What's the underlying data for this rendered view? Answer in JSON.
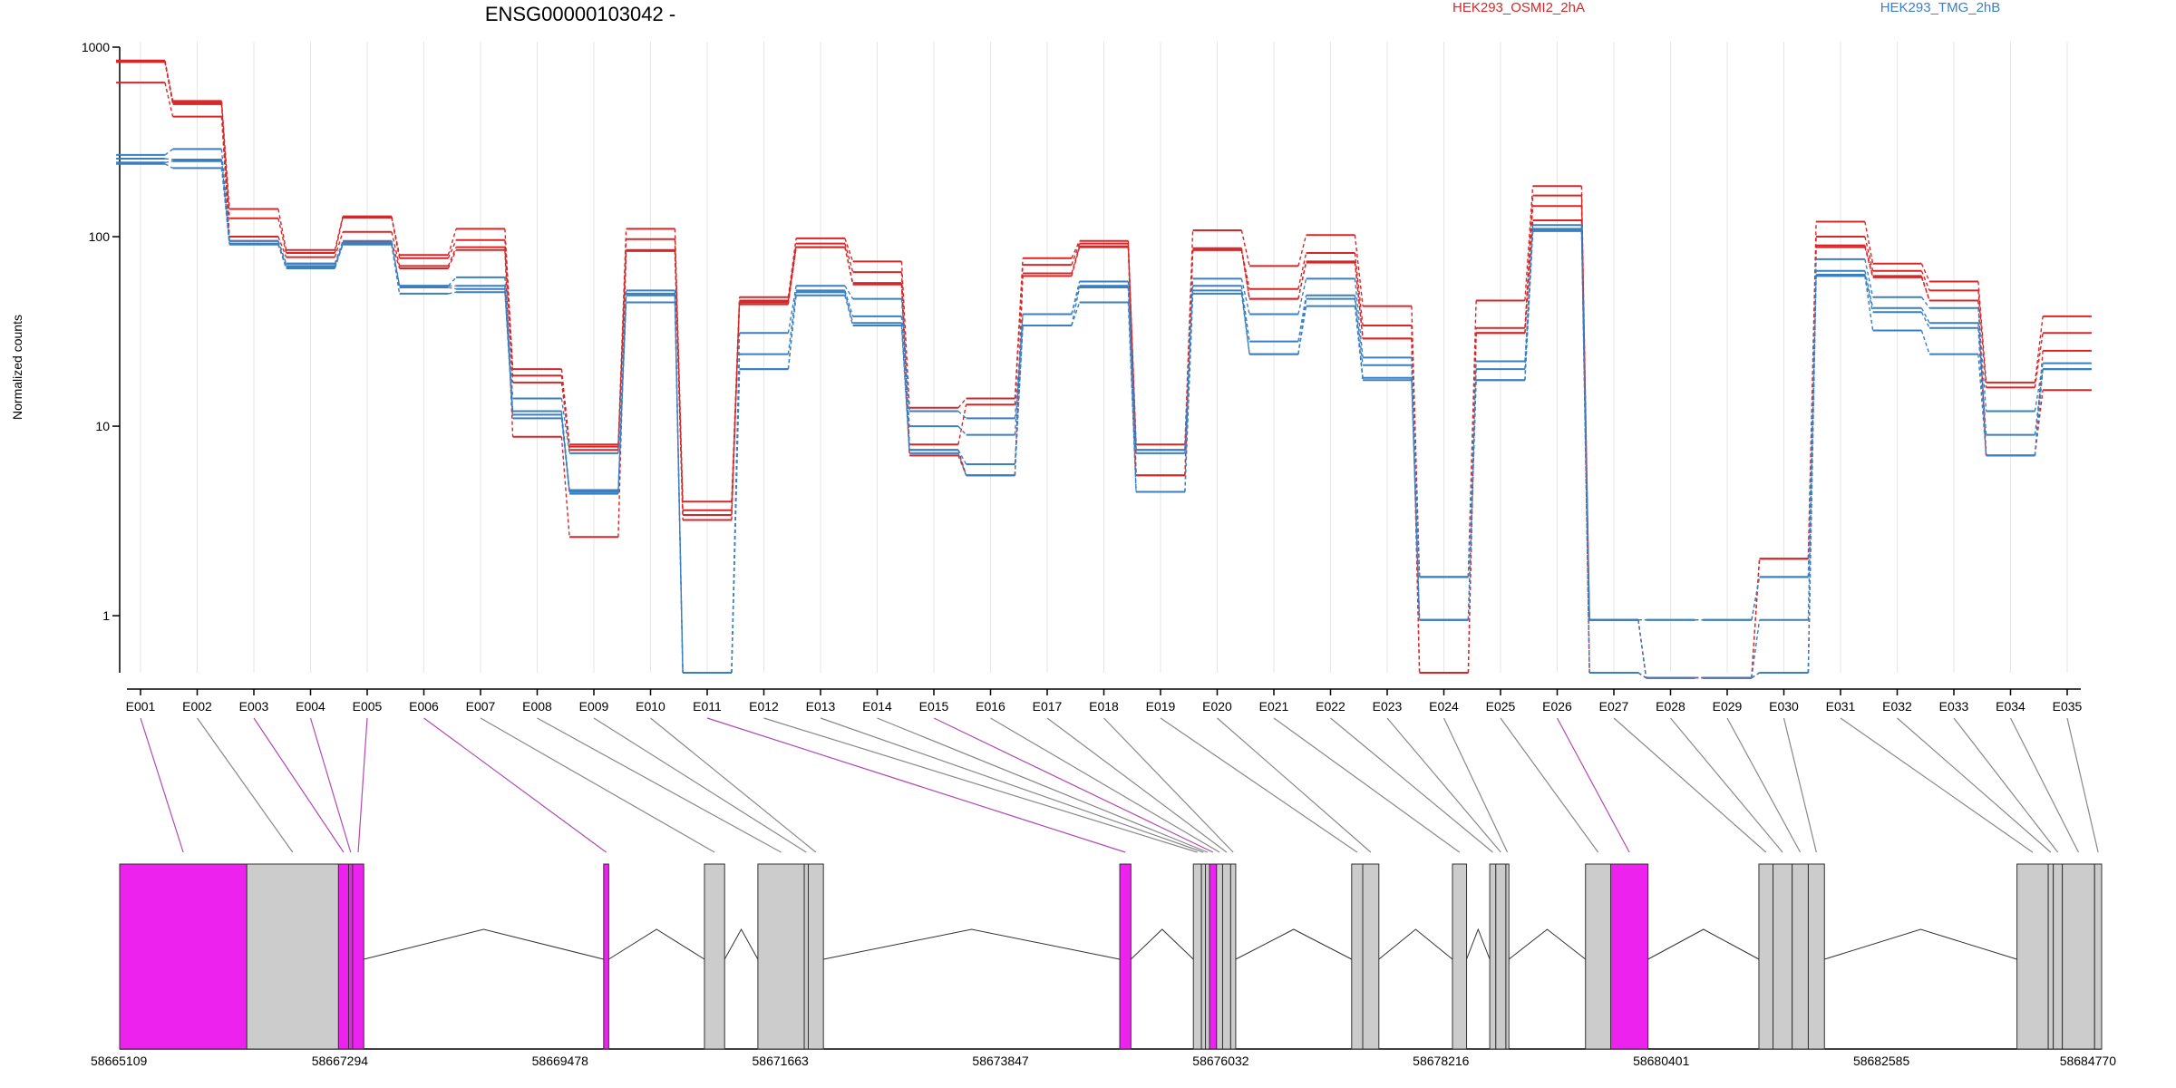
{
  "title": "ENSG00000103042 -",
  "ylabel": "Normalized counts",
  "legend": [
    {
      "name": "HEK293_OSMI2_2hA",
      "color": "#d62728"
    },
    {
      "name": "HEK293_TMG_2hB",
      "color": "#3a7fc0"
    }
  ],
  "colors": {
    "condA": "#d62728",
    "condB": "#3a7fc0",
    "spliced": "#ee22ee",
    "exon": "#cccccc",
    "grid": "#e6e6e6"
  },
  "chart_data": [
    {
      "type": "line",
      "scale": "log",
      "ylabel": "Normalized counts",
      "ylim": [
        0.5,
        1000
      ],
      "yticks": [
        1,
        10,
        100,
        1000
      ],
      "ytick_labels": [
        "1",
        "10",
        "100",
        "1000"
      ],
      "categories": [
        "E001",
        "E002",
        "E003",
        "E004",
        "E005",
        "E006",
        "E007",
        "E008",
        "E009",
        "E010",
        "E011",
        "E012",
        "E013",
        "E014",
        "E015",
        "E016",
        "E017",
        "E018",
        "E019",
        "E020",
        "E021",
        "E022",
        "E023",
        "E024",
        "E025",
        "E026",
        "E027",
        "E028",
        "E029",
        "E030",
        "E031",
        "E032",
        "E033",
        "E034",
        "E035"
      ],
      "grid": true,
      "series": [
        {
          "color": "#d62728",
          "values": [
            850,
            520,
            140,
            85,
            128,
            80,
            110,
            20,
            8,
            110,
            4,
            48,
            98,
            74,
            12.5,
            14,
            77,
            95,
            8,
            108,
            70,
            102,
            43,
            1.6,
            46,
            185,
            0.95,
            0.47,
            0.47,
            2.0,
            120,
            72,
            58,
            17,
            38
          ]
        },
        {
          "color": "#d62728",
          "values": [
            835,
            500,
            125,
            82,
            126,
            77,
            96,
            18.5,
            7.5,
            97,
            3.6,
            46,
            92,
            65,
            8.0,
            13,
            71,
            92,
            7.5,
            85,
            53,
            82,
            34,
            1.6,
            33,
            165,
            0.95,
            0.47,
            0.47,
            2.0,
            100,
            66,
            52,
            16,
            31
          ]
        },
        {
          "color": "#d62728",
          "values": [
            840,
            510,
            100,
            78,
            106,
            70,
            88,
            17,
            7.8,
            85,
            3.4,
            44,
            88,
            57,
            7.5,
            5.5,
            64,
            89,
            5.5,
            87,
            47,
            74,
            29,
            0.5,
            31,
            145,
            0.5,
            0.47,
            0.47,
            0.5,
            90,
            62,
            46,
            7,
            25
          ]
        },
        {
          "color": "#d62728",
          "values": [
            650,
            430,
            95,
            72,
            94,
            68,
            85,
            8.8,
            2.6,
            84,
            3.2,
            45,
            88,
            56,
            7.0,
            5.5,
            62,
            88,
            5.5,
            85,
            47,
            73,
            29,
            0.5,
            31,
            122,
            0.5,
            0.47,
            0.47,
            0.5,
            88,
            61,
            46,
            7,
            15.5
          ]
        },
        {
          "color": "#3a7fc0",
          "values": [
            270,
            290,
            95,
            72,
            95,
            55,
            61,
            14,
            7.2,
            52,
            0.5,
            31,
            55,
            47,
            12,
            11,
            39,
            58,
            7.5,
            60,
            39,
            60,
            23,
            1.6,
            22,
            115,
            0.95,
            0.95,
            0.95,
            1.6,
            76,
            48,
            42,
            12,
            21.5
          ]
        },
        {
          "color": "#3a7fc0",
          "values": [
            258,
            255,
            92,
            70,
            92,
            55,
            55,
            12,
            4.6,
            50,
            0.5,
            24,
            52,
            38,
            10,
            9,
            39,
            55,
            7.2,
            55,
            28,
            49,
            21,
            0.95,
            20,
            110,
            0.95,
            0.95,
            0.95,
            1.6,
            66,
            42,
            35,
            9,
            20
          ]
        },
        {
          "color": "#3a7fc0",
          "values": [
            246,
            250,
            91,
            69,
            91,
            54,
            53,
            11.5,
            4.5,
            49,
            0.5,
            20,
            51,
            35,
            7.5,
            6.3,
            34,
            54,
            4.5,
            52,
            24,
            47,
            18,
            0.95,
            17.5,
            108,
            0.95,
            0.47,
            0.47,
            0.95,
            63,
            40,
            33,
            7,
            20
          ]
        },
        {
          "color": "#3a7fc0",
          "values": [
            242,
            230,
            91,
            68,
            91,
            50,
            51,
            11,
            4.4,
            45,
            0.5,
            20,
            49,
            34,
            7.2,
            5.5,
            34,
            45,
            4.5,
            50,
            24,
            43,
            17.5,
            0.95,
            17.5,
            107,
            0.5,
            0.47,
            0.47,
            0.5,
            62,
            32,
            24,
            7,
            20
          ]
        }
      ]
    },
    {
      "type": "gene-model",
      "x_range": [
        58665109,
        58684770
      ],
      "x_tick_labels": [
        "58665109",
        "58667294",
        "58669478",
        "58671663",
        "58673847",
        "58676032",
        "58678216",
        "58680401",
        "58682585",
        "58684770"
      ],
      "exons": [
        {
          "id": "E001",
          "start": 58665109,
          "end": 58666370,
          "spliced": true
        },
        {
          "id": "E002",
          "start": 58666370,
          "end": 58667280,
          "spliced": false
        },
        {
          "id": "E003",
          "start": 58667280,
          "end": 58667380,
          "spliced": true
        },
        {
          "id": "E004",
          "start": 58667380,
          "end": 58667420,
          "spliced": true
        },
        {
          "id": "E005",
          "start": 58667420,
          "end": 58667530,
          "spliced": true
        },
        {
          "id": "E006",
          "start": 58669910,
          "end": 58669960,
          "spliced": true
        },
        {
          "id": "E007",
          "start": 58670910,
          "end": 58671110,
          "spliced": false
        },
        {
          "id": "E008",
          "start": 58671440,
          "end": 58671900,
          "spliced": false
        },
        {
          "id": "E009",
          "start": 58671900,
          "end": 58671940,
          "spliced": false
        },
        {
          "id": "E010",
          "start": 58671940,
          "end": 58672090,
          "spliced": false
        },
        {
          "id": "E011",
          "start": 58675030,
          "end": 58675140,
          "spliced": true
        },
        {
          "id": "E012",
          "start": 58675760,
          "end": 58675840,
          "spliced": false
        },
        {
          "id": "E013",
          "start": 58675840,
          "end": 58675880,
          "spliced": false
        },
        {
          "id": "E014",
          "start": 58675880,
          "end": 58675920,
          "spliced": false
        },
        {
          "id": "E015",
          "start": 58675920,
          "end": 58675990,
          "spliced": true
        },
        {
          "id": "E016",
          "start": 58675990,
          "end": 58676050,
          "spliced": false
        },
        {
          "id": "E017",
          "start": 58676050,
          "end": 58676130,
          "spliced": false
        },
        {
          "id": "E018",
          "start": 58676130,
          "end": 58676180,
          "spliced": false
        },
        {
          "id": "E019",
          "start": 58677330,
          "end": 58677440,
          "spliced": false
        },
        {
          "id": "E020",
          "start": 58677440,
          "end": 58677600,
          "spliced": false
        },
        {
          "id": "E021",
          "start": 58678330,
          "end": 58678470,
          "spliced": false
        },
        {
          "id": "E022",
          "start": 58678700,
          "end": 58678760,
          "spliced": false
        },
        {
          "id": "E023",
          "start": 58678760,
          "end": 58678860,
          "spliced": false
        },
        {
          "id": "E024",
          "start": 58678860,
          "end": 58678890,
          "spliced": false
        },
        {
          "id": "E025",
          "start": 58679650,
          "end": 58679900,
          "spliced": false
        },
        {
          "id": "E026",
          "start": 58679900,
          "end": 58680270,
          "spliced": true
        },
        {
          "id": "E027",
          "start": 58681370,
          "end": 58681510,
          "spliced": false
        },
        {
          "id": "E028",
          "start": 58681510,
          "end": 58681700,
          "spliced": false
        },
        {
          "id": "E029",
          "start": 58681700,
          "end": 58681860,
          "spliced": false
        },
        {
          "id": "E030",
          "start": 58681860,
          "end": 58682020,
          "spliced": false
        },
        {
          "id": "E031",
          "start": 58683930,
          "end": 58684240,
          "spliced": false
        },
        {
          "id": "E032",
          "start": 58684240,
          "end": 58684290,
          "spliced": false
        },
        {
          "id": "E033",
          "start": 58684290,
          "end": 58684380,
          "spliced": false
        },
        {
          "id": "E034",
          "start": 58684380,
          "end": 58684700,
          "spliced": false
        },
        {
          "id": "E035",
          "start": 58684700,
          "end": 58684770,
          "spliced": false
        }
      ]
    }
  ]
}
